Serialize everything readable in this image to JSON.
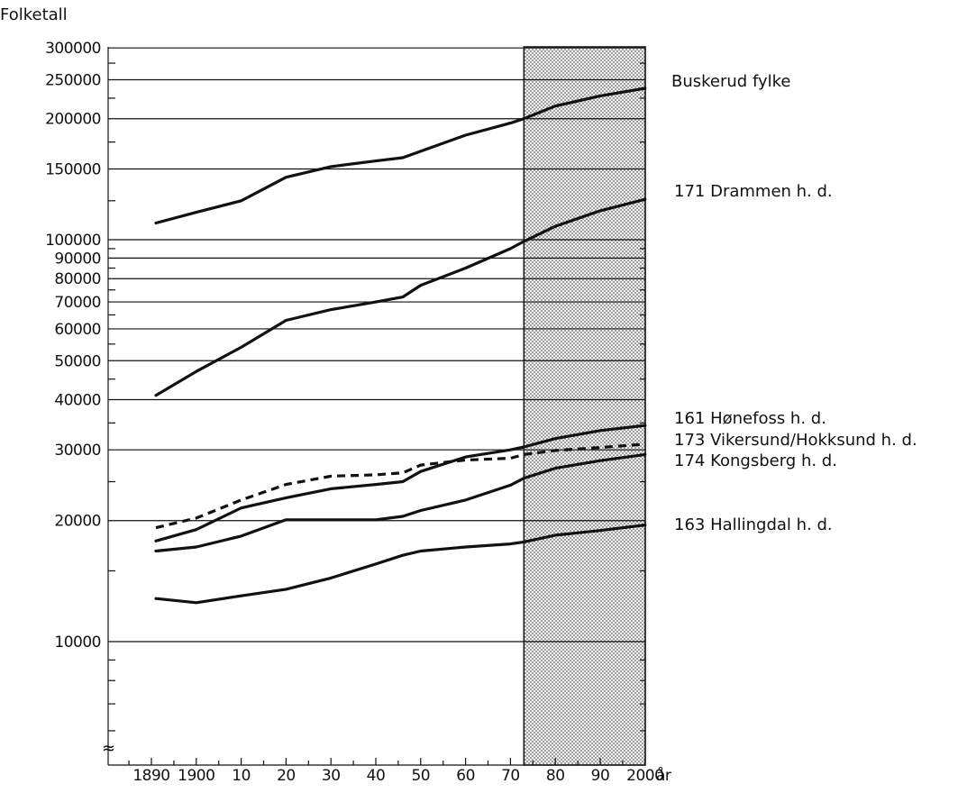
{
  "chart_data": {
    "type": "line",
    "title": "Folketall",
    "xlabel": "år",
    "y_scale": "log",
    "ylim": [
      5000,
      300000
    ],
    "xlim": [
      1880,
      2000
    ],
    "projection_start": 1973,
    "y_ticks": [
      {
        "value": 300000,
        "label": "300000"
      },
      {
        "value": 250000,
        "label": "250000"
      },
      {
        "value": 200000,
        "label": "200000"
      },
      {
        "value": 150000,
        "label": "150000"
      },
      {
        "value": 100000,
        "label": "100000"
      },
      {
        "value": 90000,
        "label": "90000"
      },
      {
        "value": 80000,
        "label": "80000"
      },
      {
        "value": 70000,
        "label": "70000"
      },
      {
        "value": 60000,
        "label": "60000"
      },
      {
        "value": 50000,
        "label": "50000"
      },
      {
        "value": 40000,
        "label": "40000"
      },
      {
        "value": 30000,
        "label": "30000"
      },
      {
        "value": 20000,
        "label": "20000"
      },
      {
        "value": 10000,
        "label": "10000"
      }
    ],
    "x_ticks": [
      {
        "value": 1890,
        "label": "1890"
      },
      {
        "value": 1900,
        "label": "1900"
      },
      {
        "value": 1910,
        "label": "10"
      },
      {
        "value": 1920,
        "label": "20"
      },
      {
        "value": 1930,
        "label": "30"
      },
      {
        "value": 1940,
        "label": "40"
      },
      {
        "value": 1950,
        "label": "50"
      },
      {
        "value": 1960,
        "label": "60"
      },
      {
        "value": 1970,
        "label": "70"
      },
      {
        "value": 1980,
        "label": "80"
      },
      {
        "value": 1990,
        "label": "90"
      },
      {
        "value": 2000,
        "label": "2000"
      }
    ],
    "series": [
      {
        "name": "Buskerud fylke",
        "dashed": false,
        "points": [
          [
            1891,
            110000
          ],
          [
            1900,
            117000
          ],
          [
            1910,
            125000
          ],
          [
            1920,
            143000
          ],
          [
            1930,
            152000
          ],
          [
            1940,
            157000
          ],
          [
            1946,
            160000
          ],
          [
            1960,
            182000
          ],
          [
            1970,
            195000
          ],
          [
            1973,
            200000
          ],
          [
            1980,
            215000
          ],
          [
            1990,
            228000
          ],
          [
            2000,
            238000
          ]
        ]
      },
      {
        "name": "171 Drammen h. d.",
        "dashed": false,
        "points": [
          [
            1891,
            41000
          ],
          [
            1900,
            47000
          ],
          [
            1910,
            54000
          ],
          [
            1920,
            63000
          ],
          [
            1930,
            67000
          ],
          [
            1940,
            70000
          ],
          [
            1946,
            72000
          ],
          [
            1950,
            77000
          ],
          [
            1960,
            85000
          ],
          [
            1970,
            95000
          ],
          [
            1973,
            99000
          ],
          [
            1980,
            108000
          ],
          [
            1990,
            118000
          ],
          [
            2000,
            126000
          ]
        ]
      },
      {
        "name": "161 Hønefoss h. d.",
        "dashed": false,
        "points": [
          [
            1891,
            17800
          ],
          [
            1900,
            19000
          ],
          [
            1910,
            21500
          ],
          [
            1920,
            22800
          ],
          [
            1930,
            24000
          ],
          [
            1940,
            24600
          ],
          [
            1946,
            25000
          ],
          [
            1950,
            26500
          ],
          [
            1960,
            28800
          ],
          [
            1970,
            30000
          ],
          [
            1973,
            30500
          ],
          [
            1980,
            32000
          ],
          [
            1990,
            33500
          ],
          [
            2000,
            34500
          ]
        ]
      },
      {
        "name": "173 Vikersund/Hokksund h. d.",
        "dashed": true,
        "points": [
          [
            1891,
            19200
          ],
          [
            1900,
            20300
          ],
          [
            1910,
            22500
          ],
          [
            1920,
            24600
          ],
          [
            1930,
            25800
          ],
          [
            1940,
            26000
          ],
          [
            1946,
            26300
          ],
          [
            1950,
            27500
          ],
          [
            1960,
            28300
          ],
          [
            1970,
            28600
          ],
          [
            1973,
            29200
          ],
          [
            1980,
            29900
          ],
          [
            1990,
            30400
          ],
          [
            2000,
            31000
          ]
        ]
      },
      {
        "name": "174 Kongsberg h. d.",
        "dashed": false,
        "points": [
          [
            1891,
            16800
          ],
          [
            1900,
            17200
          ],
          [
            1910,
            18300
          ],
          [
            1920,
            20100
          ],
          [
            1930,
            20100
          ],
          [
            1940,
            20100
          ],
          [
            1946,
            20500
          ],
          [
            1950,
            21200
          ],
          [
            1960,
            22500
          ],
          [
            1970,
            24500
          ],
          [
            1973,
            25500
          ],
          [
            1980,
            27000
          ],
          [
            1990,
            28200
          ],
          [
            2000,
            29200
          ]
        ]
      },
      {
        "name": "163 Hallingdal h. d.",
        "dashed": false,
        "points": [
          [
            1891,
            12800
          ],
          [
            1900,
            12500
          ],
          [
            1910,
            13000
          ],
          [
            1920,
            13500
          ],
          [
            1930,
            14400
          ],
          [
            1940,
            15600
          ],
          [
            1946,
            16400
          ],
          [
            1950,
            16800
          ],
          [
            1960,
            17200
          ],
          [
            1970,
            17500
          ],
          [
            1973,
            17700
          ],
          [
            1980,
            18400
          ],
          [
            1990,
            18900
          ],
          [
            2000,
            19500
          ]
        ]
      }
    ],
    "grid": true,
    "legend": "right, next to line ends"
  }
}
